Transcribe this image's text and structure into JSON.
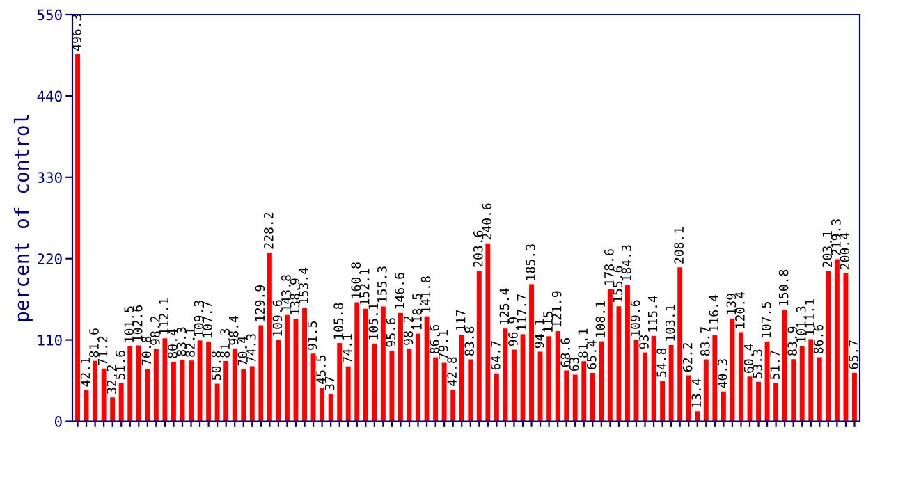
{
  "chart_data": {
    "type": "bar",
    "ylabel": "percent of control",
    "categories": [
      null,
      null,
      null,
      null,
      null,
      null,
      null,
      null,
      null,
      null,
      null,
      null,
      null,
      null,
      null,
      null,
      null,
      null,
      null,
      null,
      null,
      null,
      null,
      null,
      null,
      null,
      null,
      null,
      null,
      null,
      null,
      null,
      null,
      null,
      null,
      null,
      null,
      null,
      null,
      null,
      null,
      null,
      null,
      null,
      null,
      null,
      null,
      null,
      null,
      null,
      null,
      null,
      null,
      null,
      null,
      null,
      null,
      null,
      null,
      null,
      null,
      null,
      null,
      null,
      null,
      null,
      null,
      null,
      null,
      null,
      null,
      null,
      null,
      null,
      null,
      null,
      null,
      null,
      null,
      null,
      null,
      null,
      null,
      null,
      null,
      null,
      null,
      null,
      null,
      null
    ],
    "values": [
      496.3,
      42.1,
      81.6,
      71.2,
      32.2,
      51.6,
      101.5,
      102.6,
      70.8,
      98.2,
      112.1,
      80.4,
      83.3,
      82.1,
      109.3,
      107.7,
      50.8,
      81.3,
      98.4,
      70.4,
      74.3,
      129.9,
      228.2,
      109.6,
      143.8,
      138.9,
      153.4,
      91.5,
      45.5,
      37,
      105.8,
      74.1,
      160.8,
      152.1,
      105.1,
      155.3,
      95.6,
      146.6,
      98.2,
      118.5,
      141.8,
      86.6,
      79.1,
      42.8,
      117,
      83.8,
      203.6,
      240.6,
      64.7,
      125.4,
      96.9,
      117.7,
      185.3,
      94.1,
      115,
      121.9,
      68.6,
      63,
      81.1,
      65.4,
      108.1,
      178.6,
      155.6,
      184.3,
      109.6,
      93,
      115.4,
      54.8,
      103.1,
      208.1,
      62.2,
      13.4,
      83.7,
      116.4,
      40.3,
      139,
      120.4,
      60.4,
      53.3,
      107.5,
      51.7,
      150.8,
      83.9,
      101.3,
      111.1,
      86.6,
      203.1,
      219.3,
      200.4,
      65.7
    ],
    "color": "#ff0000",
    "ylim": [
      0,
      550
    ],
    "yticks": [
      0,
      110,
      220,
      330,
      440,
      550
    ],
    "data_labels": true,
    "grid": false,
    "legend": false
  }
}
